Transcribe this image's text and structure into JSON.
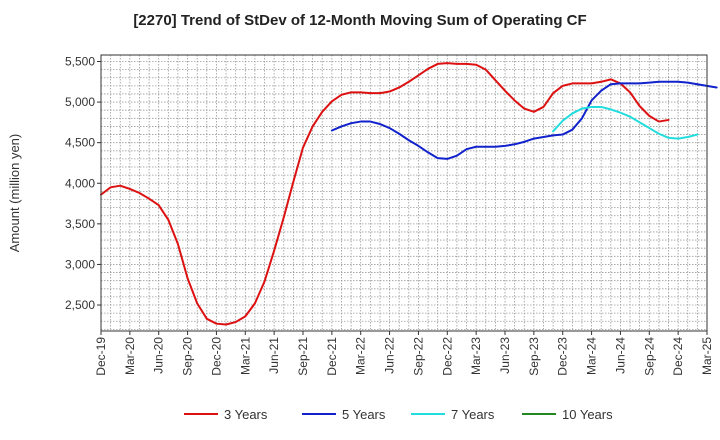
{
  "chart_data": {
    "type": "line",
    "title": "[2270]  Trend of StDev of 12-Month Moving Sum of Operating CF",
    "xlabel": "",
    "ylabel": "Amount (million yen)",
    "ylim": [
      2180,
      5580
    ],
    "y_ticks": [
      2500,
      3000,
      3500,
      4000,
      4500,
      5000,
      5500
    ],
    "y_tick_labels": [
      "2,500",
      "3,000",
      "3,500",
      "4,000",
      "4,500",
      "5,000",
      "5,500"
    ],
    "x_tick_labels": [
      "Dec-19",
      "Mar-20",
      "Jun-20",
      "Sep-20",
      "Dec-20",
      "Mar-21",
      "Jun-21",
      "Sep-21",
      "Dec-21",
      "Mar-22",
      "Jun-22",
      "Sep-22",
      "Dec-22",
      "Mar-23",
      "Jun-23",
      "Sep-23",
      "Dec-23",
      "Mar-24",
      "Jun-24",
      "Sep-24",
      "Dec-24",
      "Mar-25"
    ],
    "x_range": [
      "Dec-19",
      "Mar-25"
    ],
    "grid": true,
    "legend_position": "bottom",
    "series": [
      {
        "name": "3 Years",
        "color": "#dd1111",
        "start": "Dec-19",
        "values": [
          3860,
          3950,
          3970,
          3930,
          3880,
          3810,
          3730,
          3550,
          3250,
          2830,
          2520,
          2330,
          2270,
          2260,
          2290,
          2360,
          2520,
          2790,
          3170,
          3580,
          4020,
          4440,
          4700,
          4880,
          5010,
          5090,
          5120,
          5120,
          5110,
          5110,
          5130,
          5180,
          5250,
          5330,
          5410,
          5470,
          5480,
          5470,
          5470,
          5460,
          5400,
          5270,
          5140,
          5020,
          4920,
          4880,
          4940,
          5110,
          5200,
          5230,
          5230,
          5230,
          5250,
          5280,
          5230,
          5120,
          4950,
          4830,
          4760,
          4780
        ]
      },
      {
        "name": "5 Years",
        "color": "#1122cc",
        "start": "Dec-21",
        "values": [
          4650,
          4700,
          4740,
          4760,
          4760,
          4730,
          4680,
          4610,
          4530,
          4460,
          4380,
          4310,
          4300,
          4340,
          4420,
          4450,
          4450,
          4450,
          4460,
          4480,
          4510,
          4550,
          4570,
          4590,
          4600,
          4660,
          4800,
          5020,
          5140,
          5220,
          5230,
          5230,
          5230,
          5240,
          5250,
          5250,
          5250,
          5240,
          5220,
          5200,
          5180
        ]
      },
      {
        "name": "7 Years",
        "color": "#22dddd",
        "start": "Nov-23",
        "values": [
          4640,
          4770,
          4860,
          4920,
          4940,
          4940,
          4910,
          4870,
          4820,
          4750,
          4680,
          4610,
          4560,
          4550,
          4570,
          4600
        ]
      },
      {
        "name": "10 Years",
        "color": "#228822",
        "start": "Dec-24",
        "values": []
      }
    ]
  }
}
